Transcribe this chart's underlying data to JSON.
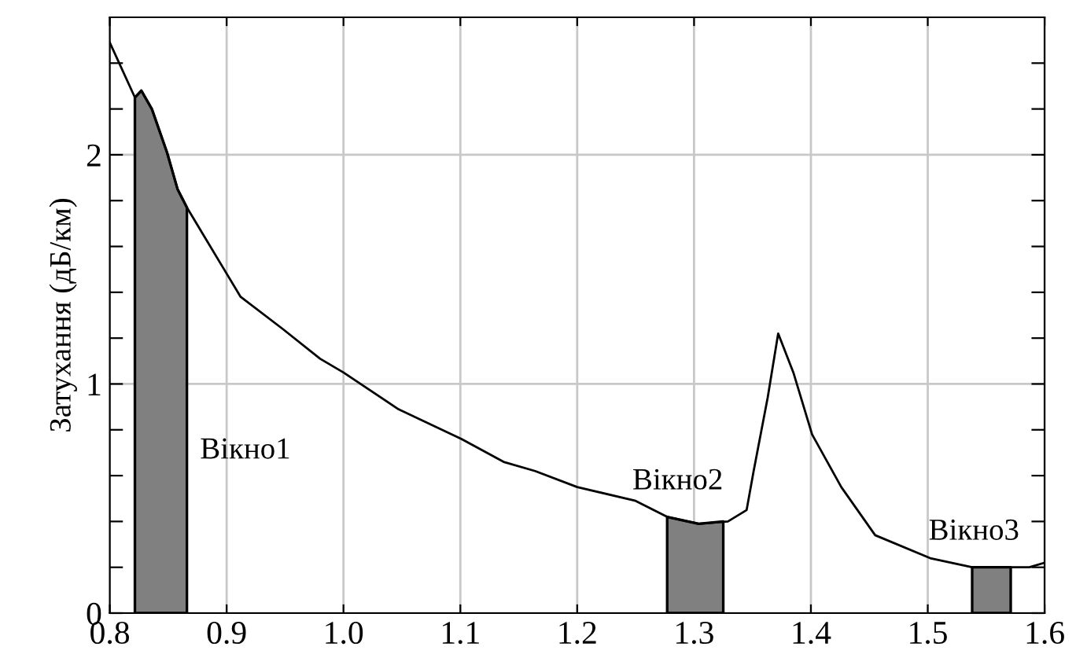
{
  "chart_data": {
    "type": "line",
    "ylabel": "Затухання (дБ/км)",
    "xlim": [
      0.8,
      1.6
    ],
    "xticks": [
      {
        "value": 0.8,
        "label": "0.8"
      },
      0.9,
      {
        "value": 1.0,
        "label": "1.0"
      },
      1.1,
      1.2,
      1.3,
      1.4,
      1.5,
      1.6
    ],
    "ylim": [
      0,
      2.6
    ],
    "yticks": [
      0,
      {
        "value": 0.2,
        "label": null
      },
      {
        "value": 0.4,
        "label": null
      },
      {
        "value": 0.6,
        "label": null
      },
      {
        "value": 0.8,
        "label": null
      },
      1,
      {
        "value": 1.2,
        "label": null
      },
      {
        "value": 1.4,
        "label": null
      },
      {
        "value": 1.6,
        "label": null
      },
      {
        "value": 1.8,
        "label": null
      },
      2,
      {
        "value": 2.2,
        "label": null
      },
      {
        "value": 2.4,
        "label": null
      }
    ],
    "grid": true,
    "series": [
      {
        "color": "#000000",
        "x": [
          0.8,
          0.8215,
          0.827,
          0.836,
          0.849,
          0.858,
          0.866,
          0.899,
          0.912,
          0.948,
          0.98,
          1.0,
          1.047,
          1.101,
          1.137,
          1.164,
          1.2,
          1.25,
          1.277,
          1.304,
          1.329,
          1.345,
          1.351,
          1.363,
          1.372,
          1.385,
          1.401,
          1.426,
          1.455,
          1.502,
          1.538,
          1.571,
          1.587,
          1.6
        ],
        "values": [
          2.49,
          2.25,
          2.28,
          2.2,
          2.01,
          1.85,
          1.77,
          1.49,
          1.38,
          1.24,
          1.11,
          1.05,
          0.89,
          0.76,
          0.66,
          0.62,
          0.55,
          0.49,
          0.42,
          0.39,
          0.4,
          0.45,
          0.62,
          0.94,
          1.22,
          1.05,
          0.78,
          0.55,
          0.34,
          0.24,
          0.2,
          0.2,
          0.2,
          0.22
        ]
      },
      {
        "type": "area",
        "name": "Вікно1",
        "color": "#808080",
        "x": [
          0.8215,
          0.827,
          0.836,
          0.849,
          0.858,
          0.866
        ],
        "values": [
          2.25,
          2.28,
          2.2,
          2.01,
          1.85,
          1.77
        ]
      },
      {
        "type": "area",
        "name": "Вікно2",
        "color": "#808080",
        "x": [
          1.277,
          1.304,
          1.325
        ],
        "values": [
          0.42,
          0.39,
          0.4
        ]
      },
      {
        "type": "area",
        "name": "Вікно3",
        "color": "#808080",
        "x": [
          1.538,
          1.571
        ],
        "values": [
          0.2,
          0.2
        ]
      }
    ]
  }
}
